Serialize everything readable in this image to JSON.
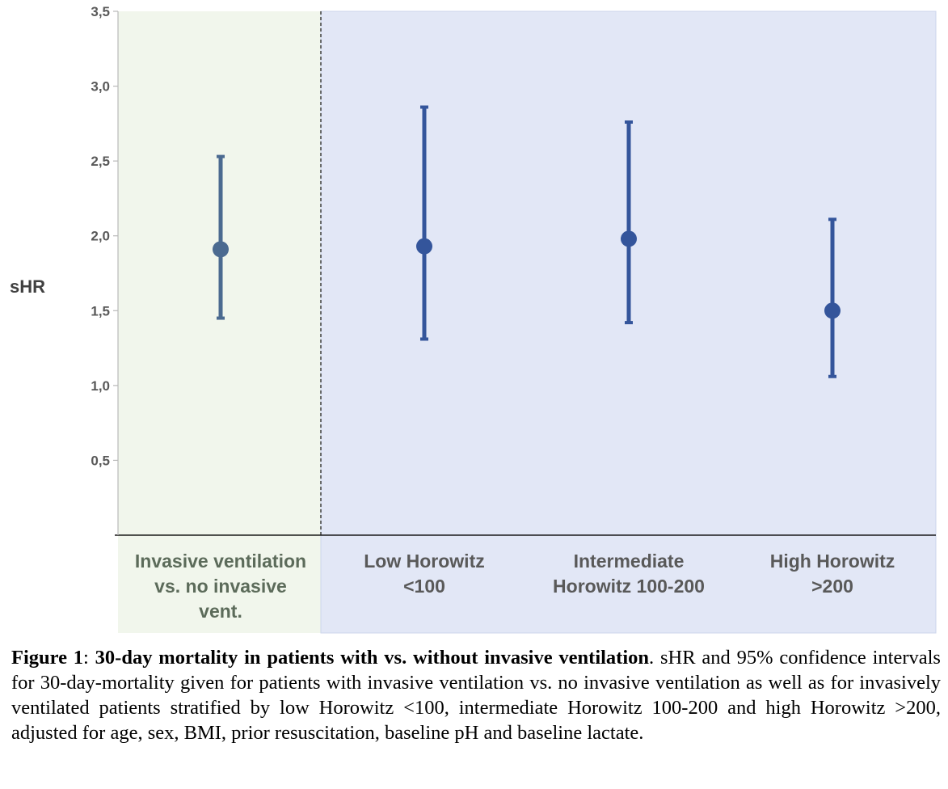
{
  "chart_data": {
    "type": "scatter",
    "title": "",
    "ylabel": "sHR",
    "ylim": [
      0,
      3.5
    ],
    "ytick_labels": [
      "0,5",
      "1,0",
      "1,5",
      "2,0",
      "2,5",
      "3,0",
      "3,5"
    ],
    "ytick_values": [
      0.5,
      1.0,
      1.5,
      2.0,
      2.5,
      3.0,
      3.5
    ],
    "grid": false,
    "categories": [
      {
        "lines": [
          "Invasive ventilation",
          "vs. no invasive",
          "vent."
        ]
      },
      {
        "lines": [
          "Low Horowitz",
          "<100"
        ]
      },
      {
        "lines": [
          "Intermediate",
          "Horowitz 100-200"
        ]
      },
      {
        "lines": [
          "High Horowitz",
          ">200"
        ]
      }
    ],
    "points": [
      {
        "y": 1.91,
        "lower": 1.45,
        "upper": 2.53
      },
      {
        "y": 1.93,
        "lower": 1.31,
        "upper": 2.86
      },
      {
        "y": 1.98,
        "lower": 1.42,
        "upper": 2.76
      },
      {
        "y": 1.5,
        "lower": 1.06,
        "upper": 2.11
      }
    ],
    "colors": {
      "first_group_bg": "#f1f6ec",
      "other_groups_bg": "#e2e7f6",
      "first_marker": "#4b6a90",
      "other_marker": "#34559b"
    }
  },
  "caption": {
    "label": "Figure 1",
    "separator": ": ",
    "bold_title": "30-day mortality in patients with vs. without invasive ventilation",
    "body": ". sHR and 95% confidence intervals for 30-day-mortality given for patients with invasive ventilation vs. no invasive ventilation as well as for invasively ventilated patients stratified by low Horowitz <100, intermediate Horowitz 100-200 and high Horowitz >200, adjusted for age, sex, BMI, prior resuscitation, baseline pH and baseline lactate."
  }
}
